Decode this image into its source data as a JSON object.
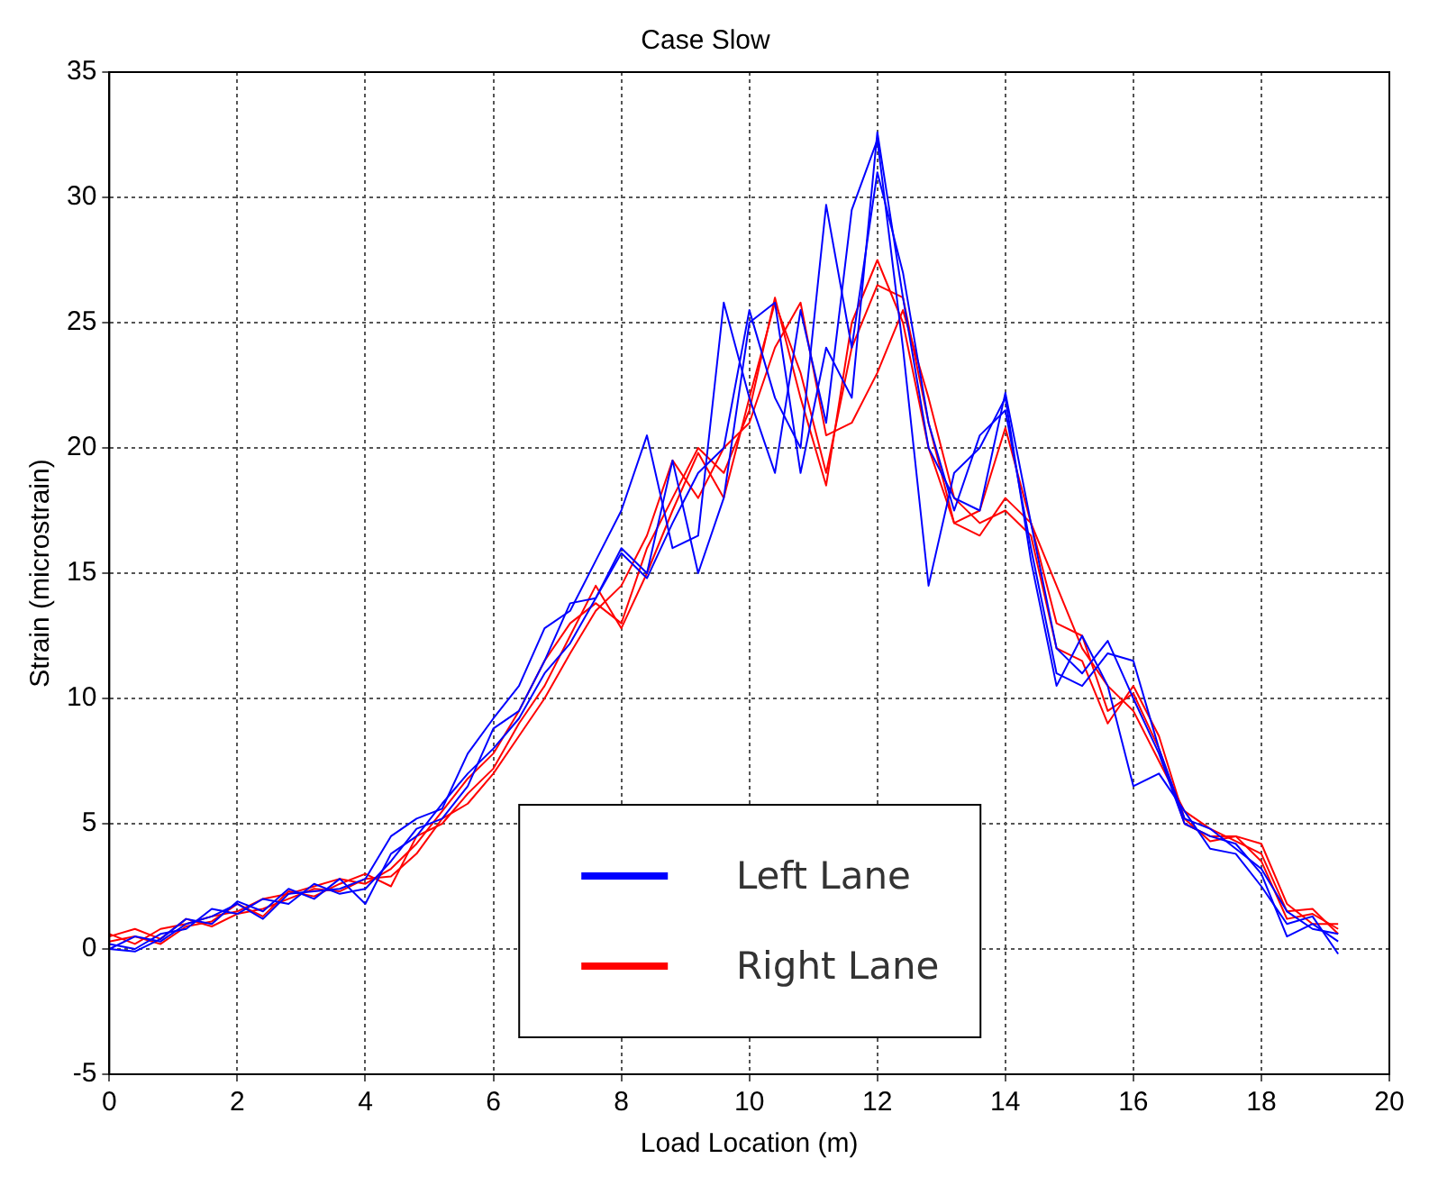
{
  "chart_data": {
    "type": "line",
    "title": "Case Slow",
    "xlabel": "Load Location (m)",
    "ylabel": "Strain (microstrain)",
    "x": [
      0,
      0.4,
      0.8,
      1.2,
      1.6,
      2,
      2.4,
      2.8,
      3.2,
      3.6,
      4,
      4.4,
      4.8,
      5.2,
      5.6,
      6,
      6.4,
      6.8,
      7.2,
      7.6,
      8,
      8.4,
      8.8,
      9.2,
      9.6,
      10,
      10.4,
      10.8,
      11.2,
      11.6,
      12,
      12.4,
      12.8,
      13.2,
      13.6,
      14,
      14.4,
      14.8,
      15.2,
      15.6,
      16,
      16.4,
      16.8,
      17.2,
      17.6,
      18,
      18.4,
      18.8,
      19.2
    ],
    "series": [
      {
        "name": "Left Lane",
        "color": "#0000ff",
        "values": [
          0,
          0.5,
          0.3,
          1.0,
          1.3,
          1.8,
          1.2,
          2.2,
          2.3,
          2.4,
          2.8,
          4.5,
          5.2,
          5.6,
          7.8,
          9.2,
          10.5,
          12.8,
          13.5,
          15.5,
          17.5,
          20.5,
          16,
          16.5,
          25.8,
          22,
          19,
          25.5,
          21,
          29.5,
          32.3,
          24,
          14.5,
          19,
          20,
          22,
          15.5,
          10.5,
          12.5,
          10.5,
          6.5,
          7,
          5.5,
          4,
          3.8,
          2.5,
          1.0,
          1.3,
          -0.2
        ]
      },
      {
        "color": "#0000ff",
        "values": [
          0.2,
          0,
          0.6,
          0.8,
          1.6,
          1.4,
          2.0,
          1.8,
          2.6,
          2.2,
          2.4,
          3.5,
          4.8,
          5.2,
          6.5,
          8.8,
          9.5,
          11.5,
          13.8,
          14,
          16,
          15,
          19.5,
          15,
          18,
          25,
          25.8,
          19,
          24,
          22,
          32.6,
          26,
          20,
          18,
          17.5,
          22.2,
          17,
          12,
          11,
          12.3,
          10,
          7.8,
          5,
          4.5,
          4.2,
          3,
          0.5,
          1.0,
          0.3
        ]
      },
      {
        "color": "#0000ff",
        "values": [
          0,
          -0.1,
          0.4,
          1.2,
          1.0,
          1.9,
          1.5,
          2.4,
          2.0,
          2.8,
          1.8,
          3.8,
          4.5,
          5.8,
          7,
          8,
          9.2,
          11,
          12.2,
          14,
          15.8,
          14.8,
          17,
          19,
          20,
          25.5,
          22,
          20,
          29.7,
          24,
          31,
          27,
          21,
          17.5,
          20.5,
          21.5,
          16,
          11,
          10.5,
          11.8,
          11.5,
          8,
          5.2,
          4.8,
          4,
          3.2,
          1.5,
          0.8,
          0.6
        ]
      },
      {
        "name": "Right Lane",
        "color": "#ff0000",
        "values": [
          0.6,
          0.2,
          0.8,
          1.0,
          1.3,
          1.5,
          2.0,
          2.2,
          2.5,
          2.8,
          2.6,
          3.2,
          4.2,
          5.5,
          6.8,
          7.8,
          9.5,
          11.5,
          13,
          13.8,
          13,
          16,
          18,
          20,
          19,
          21.5,
          26,
          22,
          18.5,
          25,
          27.5,
          25,
          20,
          17,
          17.5,
          20.8,
          17,
          14.5,
          12,
          10.5,
          9.5,
          7.5,
          5.5,
          4.8,
          4.3,
          3.8,
          1.5,
          1.6,
          0.6
        ]
      },
      {
        "color": "#ff0000",
        "values": [
          0.3,
          0.5,
          0.2,
          0.9,
          1.1,
          1.8,
          1.3,
          2.3,
          2.1,
          2.6,
          3.0,
          2.5,
          4.5,
          5,
          6.2,
          7.2,
          9,
          10.5,
          12.5,
          14.5,
          12.8,
          15,
          17.5,
          19.8,
          18,
          22,
          25.8,
          23,
          19,
          24,
          26.5,
          26,
          21,
          17,
          16.5,
          18,
          17,
          13,
          12.5,
          9.5,
          10.2,
          8,
          5,
          4.5,
          4.5,
          3.5,
          1.2,
          1.4,
          0.8
        ]
      },
      {
        "color": "#ff0000",
        "values": [
          0.5,
          0.8,
          0.4,
          1.2,
          0.9,
          1.4,
          1.6,
          2.0,
          2.4,
          2.3,
          2.8,
          2.9,
          3.8,
          5.2,
          5.8,
          7,
          8.5,
          10,
          11.8,
          13.5,
          14.5,
          16.5,
          19.5,
          18,
          20,
          21,
          24,
          25.8,
          20.5,
          21,
          23,
          25.5,
          22,
          18,
          17,
          17.5,
          16.5,
          12,
          11.5,
          9,
          10.5,
          8.5,
          5.2,
          4.3,
          4.5,
          4.2,
          1.8,
          1.0,
          1.0
        ]
      }
    ],
    "xlim": [
      0,
      20
    ],
    "xticks": [
      0,
      2,
      4,
      6,
      8,
      10,
      12,
      14,
      16,
      18,
      20
    ],
    "ylim": [
      -5,
      35
    ],
    "yticks": [
      -5,
      0,
      5,
      10,
      15,
      20,
      25,
      30,
      35
    ],
    "grid": true,
    "legend": "bottom",
    "marker": "none",
    "line_style": "solid"
  }
}
